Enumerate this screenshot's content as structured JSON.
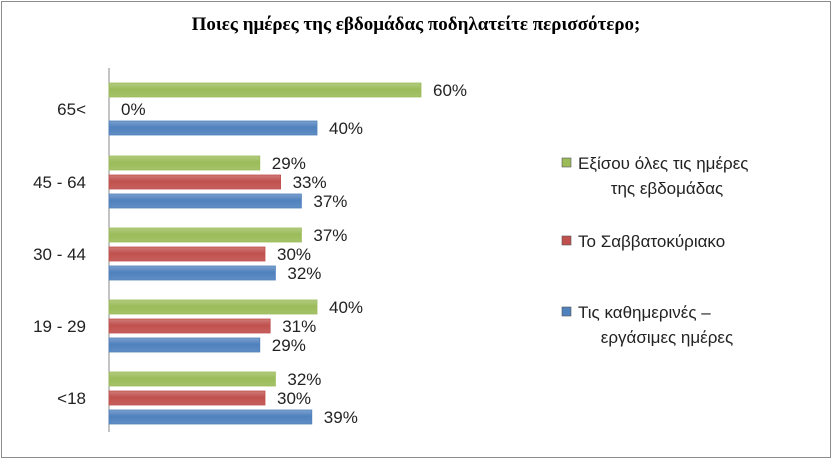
{
  "chart_data": {
    "type": "bar",
    "orientation": "horizontal",
    "title": "Ποιες ημέρες της εβδομάδας ποδηλατείτε περισσότερο;",
    "categories": [
      "65<",
      "45 - 64",
      "30 - 44",
      "19 - 29",
      "<18"
    ],
    "series": [
      {
        "name": "Εξίσου όλες τις ημέρες της εβδομάδας",
        "color": "#9bbb59",
        "values": [
          60,
          29,
          37,
          40,
          32
        ]
      },
      {
        "name": "Το Σαββατοκύριακο",
        "color": "#c0504d",
        "values": [
          0,
          33,
          30,
          31,
          30
        ]
      },
      {
        "name": "Τις καθημερινές – εργάσιμες ημέρες",
        "color": "#4f81bd",
        "values": [
          40,
          37,
          32,
          29,
          39
        ]
      }
    ],
    "legend_lines": [
      [
        "Εξίσου όλες τις ημέρες",
        "της εβδομάδας"
      ],
      [
        "Το Σαββατοκύριακο"
      ],
      [
        "Τις καθημερινές –",
        "εργάσιμες ημέρες"
      ]
    ],
    "value_suffix": "%",
    "xlim": [
      0,
      100
    ],
    "grid": false,
    "legend_position": "right"
  }
}
